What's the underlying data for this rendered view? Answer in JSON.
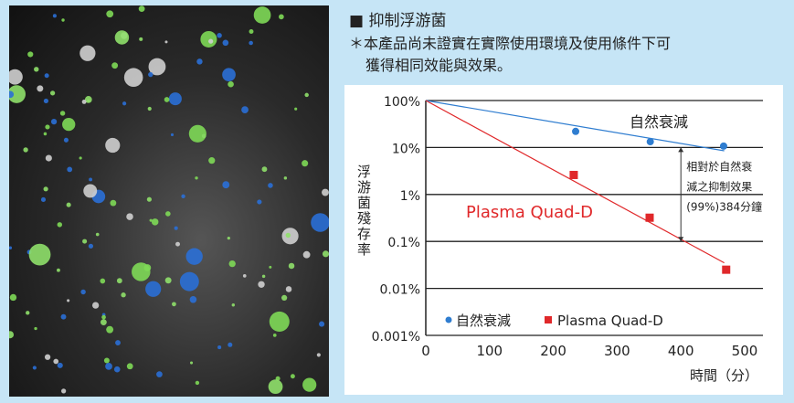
{
  "heading": "■ 抑制浮游菌",
  "note_line1": "＊本產品尚未證實在實際使用環境及使用條件下可",
  "note_line2": "獲得相同效能與效果。",
  "colors": {
    "natural": "#2f7dd0",
    "plasma": "#e0282a",
    "bg": "#c6e5f6"
  },
  "chart_data": {
    "type": "scatter",
    "title": "抑制浮游菌",
    "xlabel": "時間（分）",
    "ylabel": "浮游菌殘存率",
    "xlim": [
      0,
      530
    ],
    "ylim": [
      0.001,
      100
    ],
    "yscale": "log",
    "x_ticks": [
      "0",
      "100",
      "200",
      "300",
      "400",
      "500"
    ],
    "x_tick_values": [
      0,
      100,
      200,
      300,
      400,
      500
    ],
    "y_ticks": [
      "100%",
      "10%",
      "1%",
      "0.1%",
      "0.01%",
      "0.001%"
    ],
    "y_tick_values": [
      100,
      10,
      1,
      0.1,
      0.01,
      0.001
    ],
    "grid": true,
    "legend_position": "bottom-left",
    "series": [
      {
        "name": "自然衰減",
        "marker": "circle",
        "points": [
          [
            235,
            22
          ],
          [
            352,
            13.3
          ],
          [
            467,
            10.7
          ]
        ],
        "fit_line": [
          [
            0,
            100
          ],
          [
            468,
            8.5
          ]
        ],
        "label": "自然衰減"
      },
      {
        "name": "Plasma Quad-D",
        "marker": "square",
        "points": [
          [
            232,
            2.6
          ],
          [
            351,
            0.32
          ],
          [
            471,
            0.025
          ]
        ],
        "fit_line": [
          [
            0,
            100
          ],
          [
            468,
            0.035
          ]
        ],
        "label": "Plasma Quad-D"
      }
    ],
    "annotation": {
      "x": 400,
      "from": 10,
      "to": 0.1,
      "lines": [
        "相對於自然衰",
        "減之抑制效果",
        "(99%)384分鐘"
      ]
    }
  }
}
